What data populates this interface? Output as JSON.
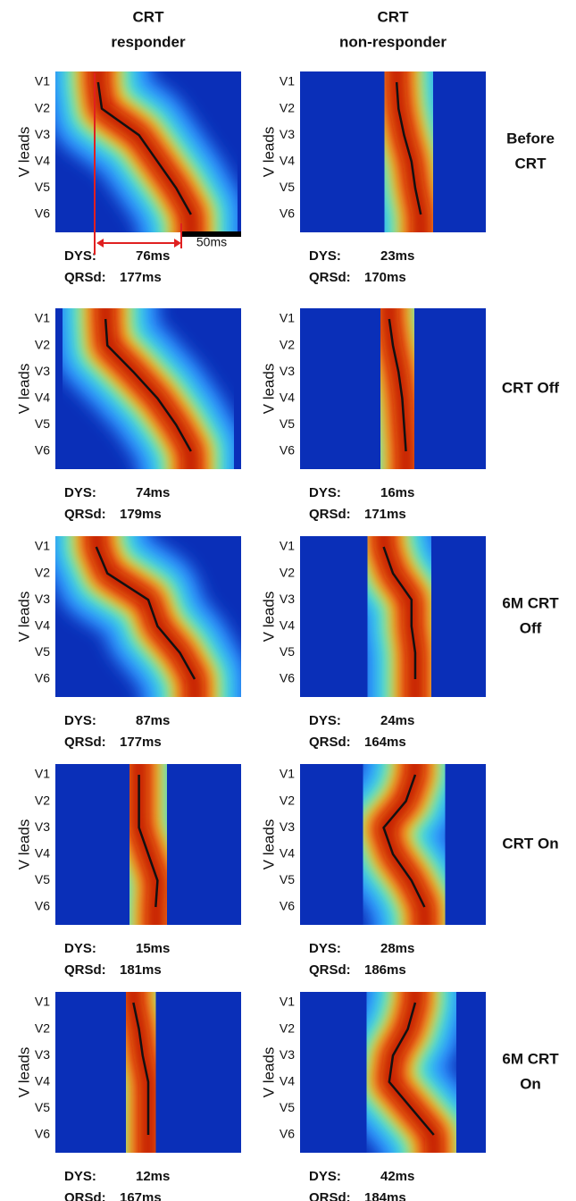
{
  "columns": [
    [
      "CRT",
      "responder"
    ],
    [
      "CRT",
      "non-responder"
    ]
  ],
  "rows": [
    [
      "Before",
      "CRT"
    ],
    [
      "CRT Off"
    ],
    [
      "6M CRT",
      "Off"
    ],
    [
      "CRT On"
    ],
    [
      "6M CRT",
      "On"
    ]
  ],
  "axis_label": "V leads",
  "leads": [
    "V1",
    "V2",
    "V3",
    "V4",
    "V5",
    "V6"
  ],
  "labels": {
    "dys": "DYS:",
    "qrsd": "QRSd:"
  },
  "scale_bar": "50ms",
  "panels": [
    [
      {
        "dys": "76ms",
        "qrsd": "177ms"
      },
      {
        "dys": "23ms",
        "qrsd": "170ms"
      }
    ],
    [
      {
        "dys": "74ms",
        "qrsd": "179ms"
      },
      {
        "dys": "16ms",
        "qrsd": "171ms"
      }
    ],
    [
      {
        "dys": "87ms",
        "qrsd": "177ms"
      },
      {
        "dys": "24ms",
        "qrsd": "164ms"
      }
    ],
    [
      {
        "dys": "15ms",
        "qrsd": "181ms"
      },
      {
        "dys": "28ms",
        "qrsd": "186ms"
      }
    ],
    [
      {
        "dys": "12ms",
        "qrsd": "167ms"
      },
      {
        "dys": "42ms",
        "qrsd": "184ms"
      }
    ]
  ]
}
